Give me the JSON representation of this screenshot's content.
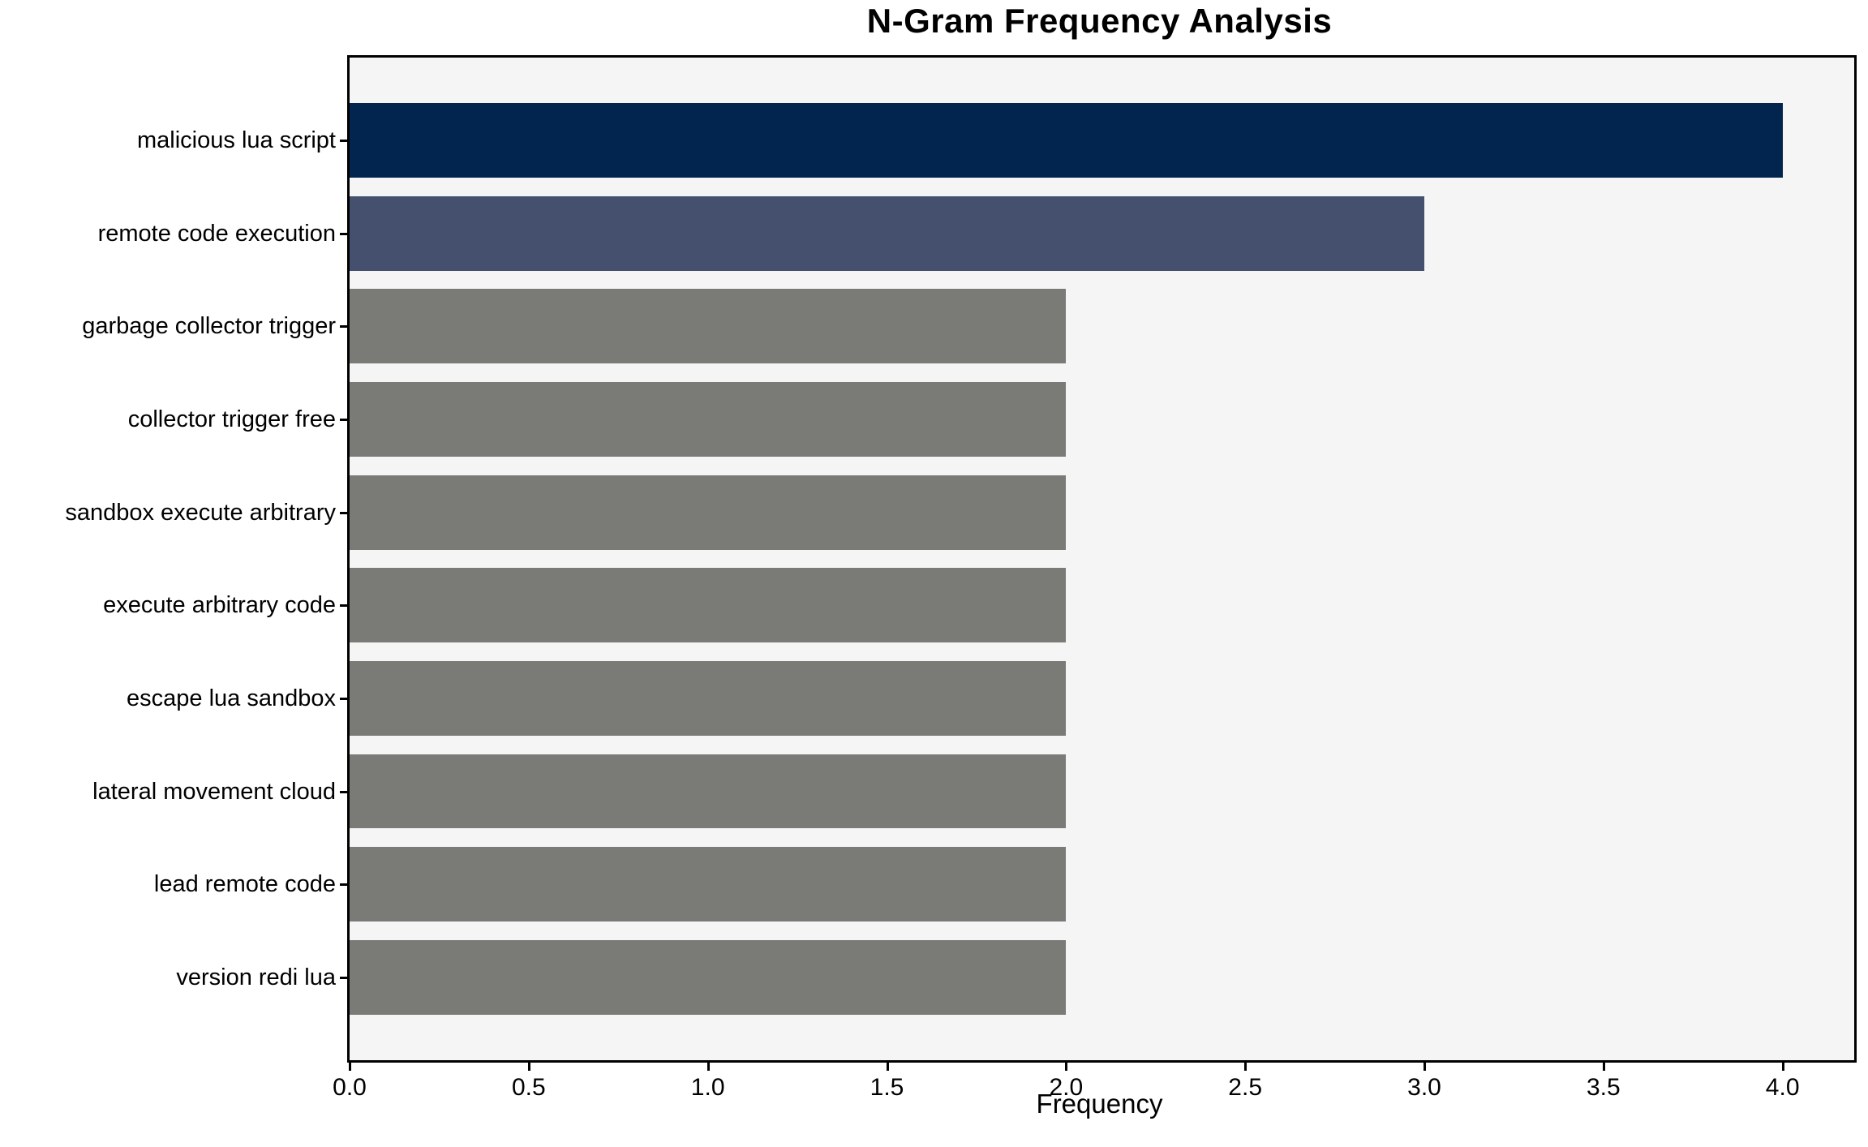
{
  "chart_data": {
    "type": "bar",
    "orientation": "horizontal",
    "title": "N-Gram Frequency Analysis",
    "xlabel": "Frequency",
    "ylabel": "",
    "categories": [
      "malicious lua script",
      "remote code execution",
      "garbage collector trigger",
      "collector trigger free",
      "sandbox execute arbitrary",
      "execute arbitrary code",
      "escape lua sandbox",
      "lateral movement cloud",
      "lead remote code",
      "version redi lua"
    ],
    "values": [
      4,
      3,
      2,
      2,
      2,
      2,
      2,
      2,
      2,
      2
    ],
    "bar_colors": [
      "#02254f",
      "#45506e",
      "#7a7a77",
      "#7a7a77",
      "#7a7a77",
      "#7a7a77",
      "#7a7a77",
      "#7a7a77",
      "#7a7a77",
      "#7a7a77"
    ],
    "xlim": [
      0,
      4.2
    ],
    "xticks": {
      "values": [
        0,
        0.5,
        1,
        1.5,
        2,
        2.5,
        3,
        3.5,
        4
      ],
      "labels": [
        "0.0",
        "0.5",
        "1.0",
        "1.5",
        "2.0",
        "2.5",
        "3.0",
        "3.5",
        "4.0"
      ]
    },
    "bar_height_fraction": 0.8,
    "grid": false,
    "legend": "none",
    "plot_background": "#f5f5f5",
    "figure_background": "#ffffff"
  }
}
